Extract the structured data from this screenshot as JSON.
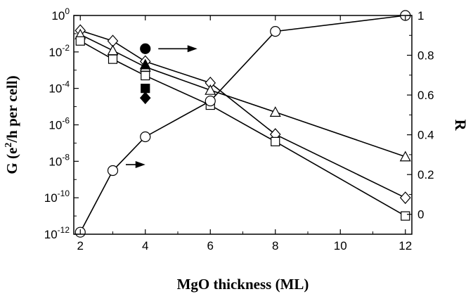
{
  "chart_data": {
    "type": "line",
    "xlabel": "MgO thickness (ML)",
    "ylabel_parts": {
      "a": "G (e",
      "sup": "2",
      "b": "/h per cell)"
    },
    "y2label": "R",
    "xlim": [
      1.8,
      12.2
    ],
    "ylim": [
      1e-12,
      1
    ],
    "y_scale": "log",
    "y2lim": [
      -0.1,
      1.0
    ],
    "x_ticks": [
      2,
      4,
      6,
      8,
      10,
      12
    ],
    "y_ticks": [
      {
        "exp": -12,
        "base": "10",
        "sup": "-12"
      },
      {
        "exp": -10,
        "base": "10",
        "sup": "-10"
      },
      {
        "exp": -8,
        "base": "10",
        "sup": "-8"
      },
      {
        "exp": -6,
        "base": "10",
        "sup": "-6"
      },
      {
        "exp": -4,
        "base": "10",
        "sup": "-4"
      },
      {
        "exp": -2,
        "base": "10",
        "sup": "-2"
      },
      {
        "exp": 0,
        "base": "10",
        "sup": "0"
      }
    ],
    "y2_ticks": [
      {
        "v": 0,
        "label": "0"
      },
      {
        "v": 0.2,
        "label": "0.2"
      },
      {
        "v": 0.4,
        "label": "0.4"
      },
      {
        "v": 0.6,
        "label": "0.6"
      },
      {
        "v": 0.8,
        "label": "0.8"
      },
      {
        "v": 1.0,
        "label": "1"
      }
    ],
    "grid": false,
    "series": [
      {
        "marker": "diamond-open",
        "axis": "left",
        "x": [
          2,
          3,
          4,
          6,
          8,
          12
        ],
        "y": [
          0.15,
          0.04,
          0.003,
          0.0002,
          3e-07,
          1e-10
        ]
      },
      {
        "marker": "triangle-open",
        "axis": "left",
        "x": [
          2,
          3,
          4,
          6,
          8,
          12
        ],
        "y": [
          0.09,
          0.012,
          0.0015,
          8e-05,
          5e-06,
          1.8e-08
        ]
      },
      {
        "marker": "square-open",
        "axis": "left",
        "x": [
          2,
          3,
          4,
          6,
          8,
          12
        ],
        "y": [
          0.04,
          0.004,
          0.0005,
          1.2e-05,
          1.2e-07,
          1e-11
        ]
      },
      {
        "marker": "circle-open",
        "axis": "right",
        "x": [
          2,
          3,
          4,
          6,
          8,
          12
        ],
        "y": [
          -0.09,
          0.22,
          0.39,
          0.57,
          0.92,
          1.0
        ]
      }
    ],
    "single_points": [
      {
        "marker": "circle-filled",
        "x": 4,
        "y": 0.015
      },
      {
        "marker": "triangle-filled",
        "x": 4,
        "y": 0.002
      },
      {
        "marker": "square-filled",
        "x": 4,
        "y": 0.0001
      },
      {
        "marker": "diamond-filled",
        "x": 4,
        "y": 3e-05
      }
    ],
    "arrows": [
      {
        "from": [
          4.4,
          0.015
        ],
        "to": [
          5.6,
          0.015
        ],
        "axis": "left"
      },
      {
        "from": [
          3.4,
          0.25
        ],
        "to": [
          4.0,
          0.25
        ],
        "axis": "right"
      }
    ]
  }
}
